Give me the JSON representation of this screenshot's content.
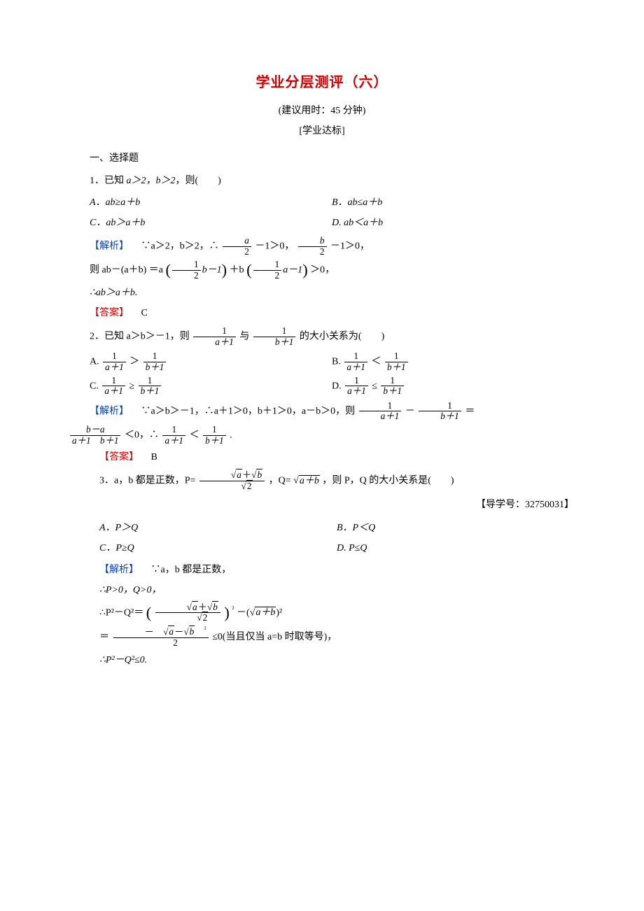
{
  "title": "学业分层测评（六）",
  "suggested_time": "(建议用时：45 分钟)",
  "section_tag": "[学业达标]",
  "part1_heading": "一、选择题",
  "colors": {
    "title": "#d00000",
    "analysis": "#0040c0",
    "answer": "#d00000",
    "body_text": "#000000",
    "background": "#ffffff"
  },
  "labels": {
    "analysis": "【解析】",
    "answer": "【答案】"
  },
  "q1": {
    "stem_prefix": "1．已知 ",
    "stem_cond": "a＞2，b＞2",
    "stem_suffix": "，则(　　)",
    "optA": "A．ab≥a＋b",
    "optB": "B．ab≤a＋b",
    "optC": "C．ab＞a＋b",
    "optD": "D. ab＜a＋b",
    "ana1_pre": "∵a＞2，b＞2，∴",
    "ana1_mid": "－1＞0，",
    "ana1_end": "－1＞0，",
    "ana2_pre": "则 ab－(a＋b) ＝a",
    "ana2_mid": "＋b",
    "ana2_end": "＞0，",
    "half_b_minus1": "b－1",
    "half_a_minus1": "a－1",
    "ana3": "∴ab＞a＋b.",
    "answer": "C"
  },
  "q2": {
    "stem_pre": "2．已知 a＞b＞－1，则",
    "stem_mid": "与",
    "stem_end": "的大小关系为(　　)",
    "lt": "＜",
    "gt": "＞",
    "le": "≤",
    "ge": "≥",
    "fracA_num": "1",
    "fracA_den": "a＋1",
    "fracB_num": "1",
    "fracB_den": "b＋1",
    "optA_label": "A.",
    "optB_label": "B.",
    "optC_label": "C.",
    "optD_label": "D.",
    "ana_pre": "∵a＞b＞－1，∴a＋1＞0，b＋1＞0，a－b＞0，则",
    "ana_minus": "－",
    "ana_eq": "＝",
    "diff_num": "b－a",
    "diff_den_l": "a＋1",
    "diff_den_r": "b＋1",
    "ana_lt0": "＜0，∴",
    "ana_final": ".",
    "answer": "B"
  },
  "q3": {
    "stem_pre": "3．a，b 都是正数，P=",
    "P_num_l": "a",
    "P_num_plus": "＋",
    "P_num_r": "b",
    "P_den": "2",
    "stem_mid": "，Q=",
    "Q_inside": "a＋b",
    "stem_end": "，则 P，Q 的大小关系是(　　)",
    "guide": "【导学号：32750031】",
    "optA": "A．P＞Q",
    "optB": "B．P＜Q",
    "optC": "C．P≥Q",
    "optD": "D. P≤Q",
    "ana1": "∵a，b 都是正数，",
    "ana2": "∴P>0，Q>0，",
    "ana3_pre": "∴P²－Q²＝",
    "ana3_sqexp": "²",
    "ana3_minus": "－(",
    "ana3_end": ")²",
    "ana4_num_pre": "－",
    "ana4_num_l": "a",
    "ana4_num_minus": "－",
    "ana4_num_r": "b",
    "ana4_num_sq": "²",
    "ana4_den": "2",
    "ana4_rel": "≤0(当且仅当 a=b 时取等号)，",
    "ana5": "∴P²－Q²≤0.",
    "eq": "＝"
  }
}
